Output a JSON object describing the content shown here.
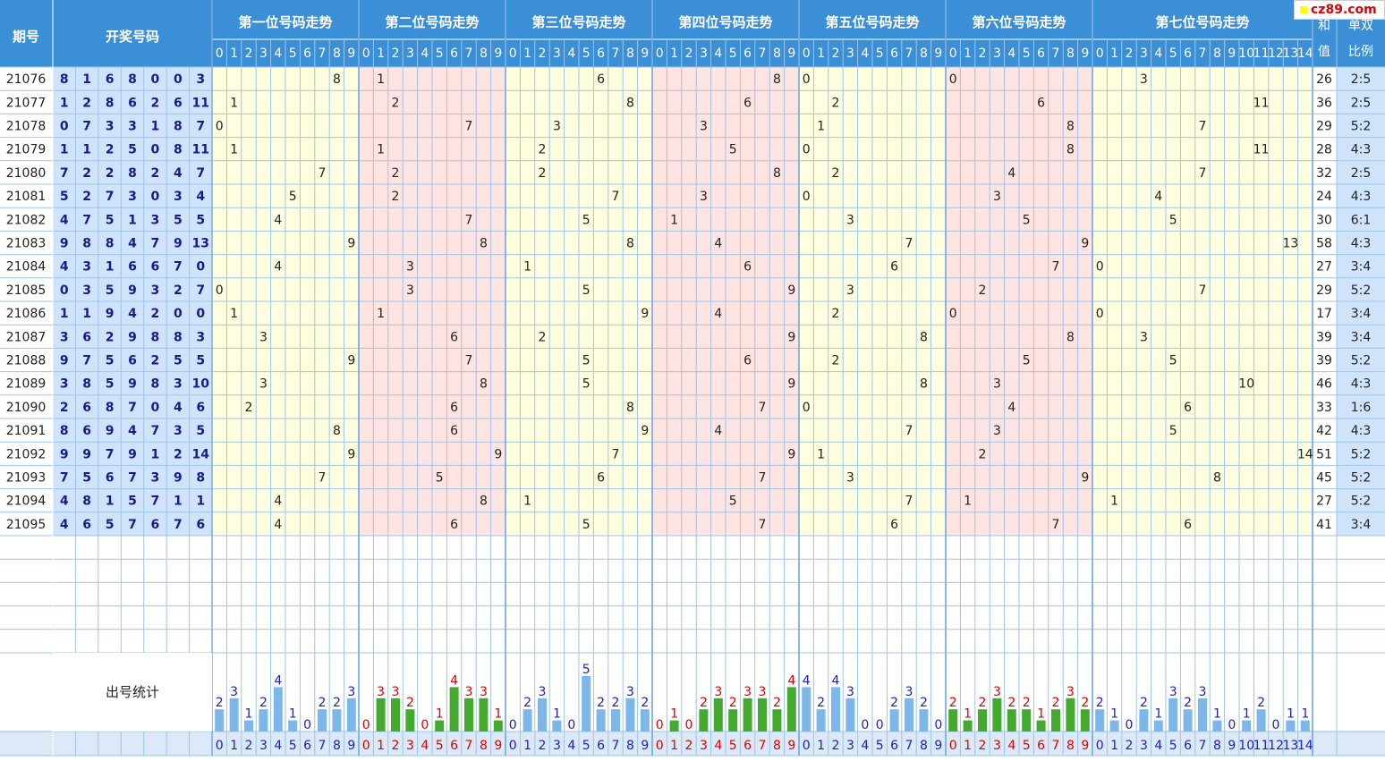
{
  "site_label": "cz89.com",
  "headers": {
    "issue": "期号",
    "winning": "开奖号码",
    "sum": "和值",
    "ratio": "单双比例",
    "stats": "出号统计"
  },
  "positions": [
    "第一位号码走势",
    "第二位号码走势",
    "第三位号码走势",
    "第四位号码走势",
    "第五位号码走势",
    "第六位号码走势",
    "第七位号码走势"
  ],
  "colors": {
    "header_bg": "#3a8fd6",
    "num_text": "#1a1a8a",
    "yellow": "#ffffe0",
    "pink": "#ffe4e1",
    "grid": "#9fc4e8",
    "blue_bar": "#7bb7ea",
    "green_bar": "#44aa2f",
    "red_num": "#e00000",
    "blue_num": "#2020c0"
  },
  "chart_data": {
    "type": "table",
    "draws": [
      {
        "issue": "21076",
        "nums": [
          8,
          1,
          6,
          8,
          0,
          0,
          3
        ],
        "sum": 26,
        "ratio": "2:5"
      },
      {
        "issue": "21077",
        "nums": [
          1,
          2,
          8,
          6,
          2,
          6,
          11
        ],
        "sum": 36,
        "ratio": "2:5"
      },
      {
        "issue": "21078",
        "nums": [
          0,
          7,
          3,
          3,
          1,
          8,
          7
        ],
        "sum": 29,
        "ratio": "5:2"
      },
      {
        "issue": "21079",
        "nums": [
          1,
          1,
          2,
          5,
          0,
          8,
          11
        ],
        "sum": 28,
        "ratio": "4:3"
      },
      {
        "issue": "21080",
        "nums": [
          7,
          2,
          2,
          8,
          2,
          4,
          7
        ],
        "sum": 32,
        "ratio": "2:5"
      },
      {
        "issue": "21081",
        "nums": [
          5,
          2,
          7,
          3,
          0,
          3,
          4
        ],
        "sum": 24,
        "ratio": "4:3"
      },
      {
        "issue": "21082",
        "nums": [
          4,
          7,
          5,
          1,
          3,
          5,
          5
        ],
        "sum": 30,
        "ratio": "6:1"
      },
      {
        "issue": "21083",
        "nums": [
          9,
          8,
          8,
          4,
          7,
          9,
          13
        ],
        "sum": 58,
        "ratio": "4:3"
      },
      {
        "issue": "21084",
        "nums": [
          4,
          3,
          1,
          6,
          6,
          7,
          0
        ],
        "sum": 27,
        "ratio": "3:4"
      },
      {
        "issue": "21085",
        "nums": [
          0,
          3,
          5,
          9,
          3,
          2,
          7
        ],
        "sum": 29,
        "ratio": "5:2"
      },
      {
        "issue": "21086",
        "nums": [
          1,
          1,
          9,
          4,
          2,
          0,
          0
        ],
        "sum": 17,
        "ratio": "3:4"
      },
      {
        "issue": "21087",
        "nums": [
          3,
          6,
          2,
          9,
          8,
          8,
          3
        ],
        "sum": 39,
        "ratio": "3:4"
      },
      {
        "issue": "21088",
        "nums": [
          9,
          7,
          5,
          6,
          2,
          5,
          5
        ],
        "sum": 39,
        "ratio": "5:2"
      },
      {
        "issue": "21089",
        "nums": [
          3,
          8,
          5,
          9,
          8,
          3,
          10
        ],
        "sum": 46,
        "ratio": "4:3"
      },
      {
        "issue": "21090",
        "nums": [
          2,
          6,
          8,
          7,
          0,
          4,
          6
        ],
        "sum": 33,
        "ratio": "1:6"
      },
      {
        "issue": "21091",
        "nums": [
          8,
          6,
          9,
          4,
          7,
          3,
          5
        ],
        "sum": 42,
        "ratio": "4:3"
      },
      {
        "issue": "21092",
        "nums": [
          9,
          9,
          7,
          9,
          1,
          2,
          14
        ],
        "sum": 51,
        "ratio": "5:2"
      },
      {
        "issue": "21093",
        "nums": [
          7,
          5,
          6,
          7,
          3,
          9,
          8
        ],
        "sum": 45,
        "ratio": "5:2"
      },
      {
        "issue": "21094",
        "nums": [
          4,
          8,
          1,
          5,
          7,
          1,
          1
        ],
        "sum": 27,
        "ratio": "5:2"
      },
      {
        "issue": "21095",
        "nums": [
          4,
          6,
          5,
          7,
          6,
          7,
          6
        ],
        "sum": 41,
        "ratio": "3:4"
      }
    ],
    "stats": [
      [
        2,
        3,
        1,
        2,
        4,
        1,
        0,
        2,
        2,
        3
      ],
      [
        0,
        3,
        3,
        2,
        0,
        1,
        4,
        3,
        3,
        1
      ],
      [
        0,
        2,
        3,
        1,
        0,
        5,
        2,
        2,
        3,
        2
      ],
      [
        0,
        1,
        0,
        2,
        3,
        2,
        3,
        3,
        2,
        4
      ],
      [
        4,
        2,
        4,
        3,
        0,
        0,
        2,
        3,
        2,
        0
      ],
      [
        2,
        1,
        2,
        3,
        2,
        2,
        1,
        2,
        3,
        2
      ],
      [
        2,
        1,
        0,
        2,
        1,
        3,
        2,
        3,
        1,
        0,
        1,
        2,
        0,
        1,
        1
      ]
    ],
    "stats_bar_colors": [
      "blue",
      "green",
      "blue",
      "green",
      "blue",
      "green",
      "blue"
    ]
  }
}
